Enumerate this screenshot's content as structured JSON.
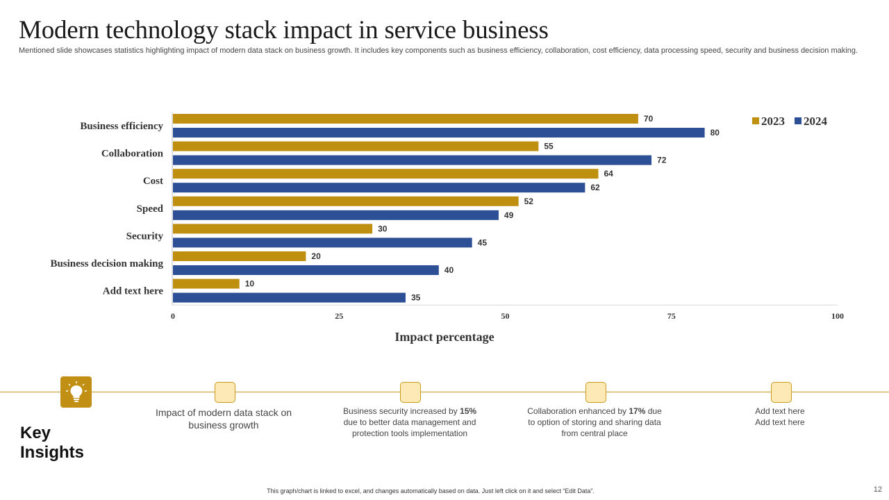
{
  "header": {
    "title": "Modern technology stack impact in service business",
    "subtitle": "Mentioned slide showcases statistics highlighting impact of modern data stack on business growth. It includes key components such as business efficiency, collaboration, cost efficiency, data processing speed, security and business decision making."
  },
  "chart_data": {
    "type": "bar",
    "orientation": "horizontal",
    "categories": [
      "Business efficiency",
      "Collaboration",
      "Cost",
      "Speed",
      "Security",
      "Business decision making",
      "Add text here"
    ],
    "series": [
      {
        "name": "2023",
        "values": [
          70,
          55,
          64,
          52,
          30,
          20,
          10
        ],
        "color": "#bf900f"
      },
      {
        "name": "2024",
        "values": [
          80,
          72,
          62,
          49,
          45,
          40,
          35
        ],
        "color": "#2d4f96"
      }
    ],
    "xlabel": "Impact percentage",
    "ylabel": "",
    "xlim": [
      0,
      100
    ],
    "xticks": [
      0,
      25,
      50,
      75,
      100
    ],
    "legend": "top-right",
    "grid": false
  },
  "insights": {
    "heading_line1": "Key",
    "heading_line2": "Insights",
    "icon": "lightbulb-icon",
    "item1": "Impact of modern data stack on business growth",
    "item2_pre": "Business security increased by ",
    "item2_bold": "15%",
    "item2_post": " due to better data management and protection tools implementation",
    "item3_pre": "Collaboration  enhanced by ",
    "item3_bold": "17%",
    "item3_post": " due to option of storing and sharing data from central place",
    "item4_line1": "Add text here",
    "item4_line2": "Add text here"
  },
  "footer": {
    "note": "This graph/chart is linked to excel, and changes automatically based on data.  Just left click on it and select “Edit Data”.",
    "page_number": "12"
  },
  "colors": {
    "accent": "#c08f13",
    "series_2023": "#bf900f",
    "series_2024": "#2d4f96"
  }
}
